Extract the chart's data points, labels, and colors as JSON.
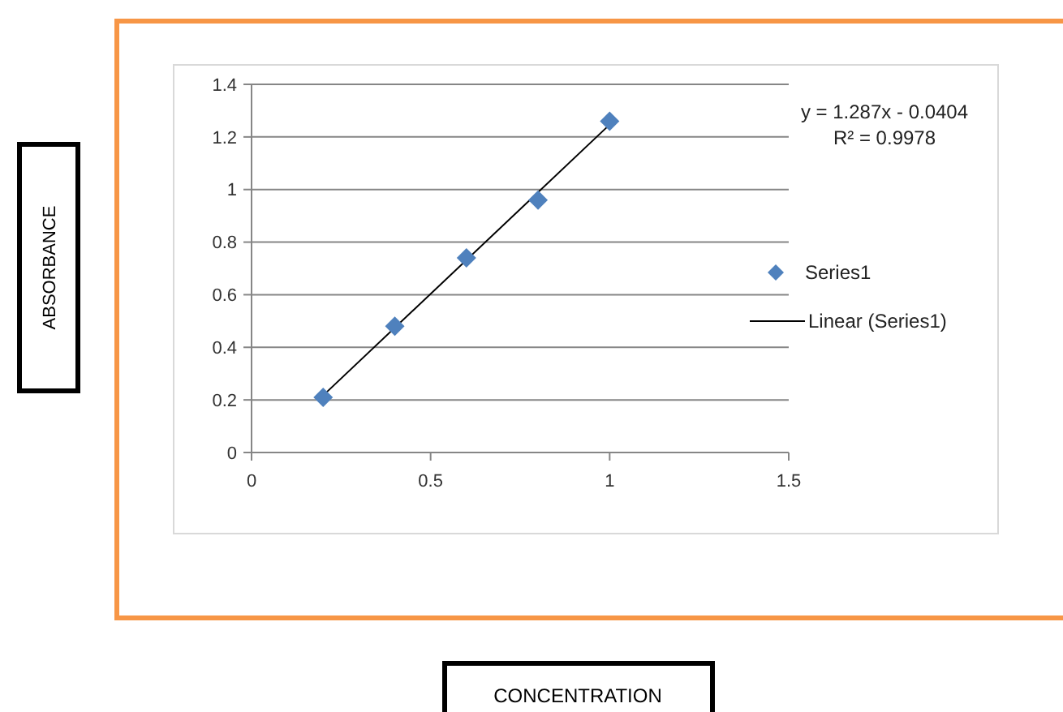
{
  "chart_data": {
    "type": "scatter",
    "xlim": [
      0,
      1.5
    ],
    "ylim": [
      0,
      1.4
    ],
    "xticks": [
      0,
      0.5,
      1,
      1.5
    ],
    "yticks": [
      0,
      0.2,
      0.4,
      0.6,
      0.8,
      1,
      1.2,
      1.4
    ],
    "grid": "y",
    "legend": "right",
    "annotations": [
      "y = 1.287x - 0.0404",
      "R² = 0.9978",
      "ABSORBANCE",
      "CONCENTRATION"
    ],
    "series": [
      {
        "name": "Series1",
        "color": "#4f81bd",
        "marker": "diamond",
        "x": [
          0.2,
          0.4,
          0.6,
          0.8,
          1
        ],
        "values": [
          0.21,
          0.48,
          0.74,
          0.96,
          1.26
        ]
      },
      {
        "name": "Linear (Series1)",
        "type": "line",
        "color": "#000000",
        "line_style": "solid",
        "x": [
          0.2,
          1
        ],
        "values": [
          0.217,
          1.247
        ]
      }
    ]
  }
}
